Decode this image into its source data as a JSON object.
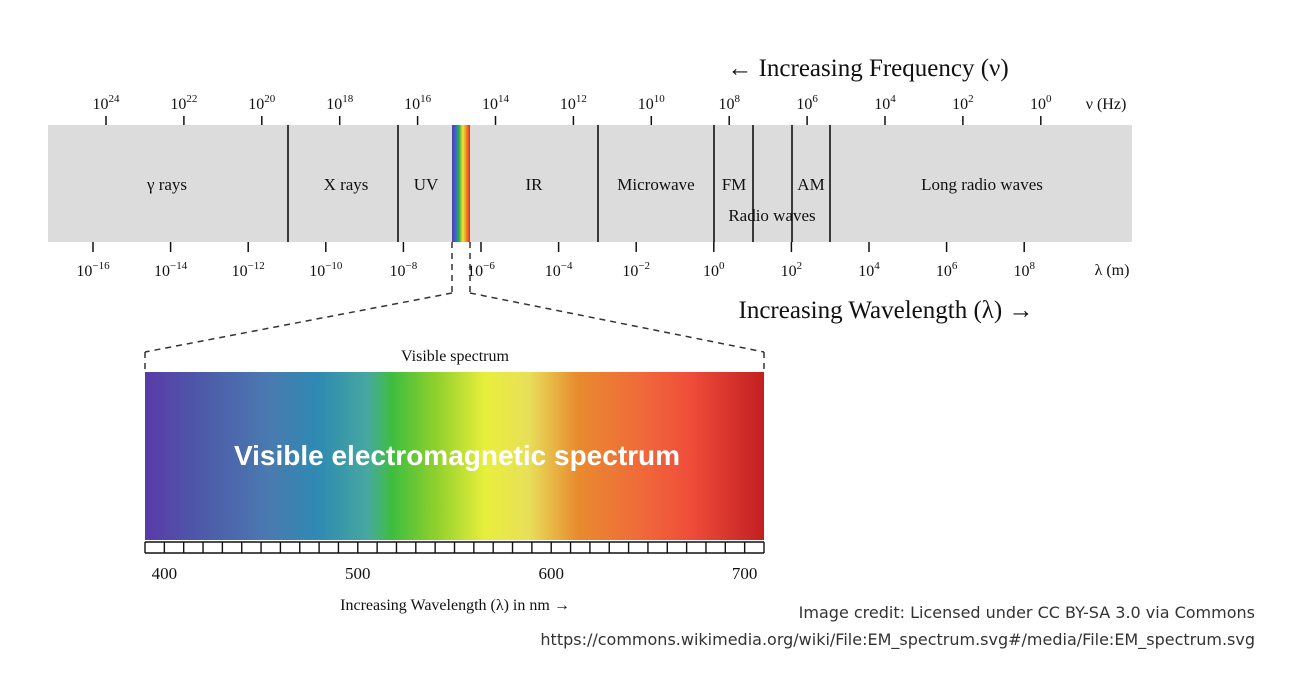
{
  "frequency_header": "← Increasing Frequency (ν)",
  "frequency_unit": "ν (Hz)",
  "frequency_ticks": [
    {
      "base": "10",
      "exp": "24"
    },
    {
      "base": "10",
      "exp": "22"
    },
    {
      "base": "10",
      "exp": "20"
    },
    {
      "base": "10",
      "exp": "18"
    },
    {
      "base": "10",
      "exp": "16"
    },
    {
      "base": "10",
      "exp": "14"
    },
    {
      "base": "10",
      "exp": "12"
    },
    {
      "base": "10",
      "exp": "10"
    },
    {
      "base": "10",
      "exp": "8"
    },
    {
      "base": "10",
      "exp": "6"
    },
    {
      "base": "10",
      "exp": "4"
    },
    {
      "base": "10",
      "exp": "2"
    },
    {
      "base": "10",
      "exp": "0"
    }
  ],
  "wavelength_unit": "λ (m)",
  "wavelength_ticks": [
    {
      "base": "10",
      "exp": "−16"
    },
    {
      "base": "10",
      "exp": "−14"
    },
    {
      "base": "10",
      "exp": "−12"
    },
    {
      "base": "10",
      "exp": "−10"
    },
    {
      "base": "10",
      "exp": "−8"
    },
    {
      "base": "10",
      "exp": "−6"
    },
    {
      "base": "10",
      "exp": "−4"
    },
    {
      "base": "10",
      "exp": "−2"
    },
    {
      "base": "10",
      "exp": "0"
    },
    {
      "base": "10",
      "exp": "2"
    },
    {
      "base": "10",
      "exp": "4"
    },
    {
      "base": "10",
      "exp": "6"
    },
    {
      "base": "10",
      "exp": "8"
    }
  ],
  "wavelength_footer": "Increasing Wavelength (λ) →",
  "regions": {
    "gamma": "γ rays",
    "xray": "X rays",
    "uv": "UV",
    "ir": "IR",
    "microwave": "Microwave",
    "fm": "FM",
    "am": "AM",
    "radio": "Radio waves",
    "long_radio": "Long radio waves"
  },
  "visible": {
    "title": "Visible spectrum",
    "overlay": "Visible electromagnetic spectrum",
    "ticks": [
      "400",
      "500",
      "600",
      "700"
    ],
    "axis_label": "Increasing Wavelength (λ) in nm →"
  },
  "colors": {
    "band": "#dcdcdc",
    "overlay_text": "#ffffff"
  },
  "credit": {
    "line1": "Image credit: Licensed under CC BY-SA 3.0 via Commons",
    "line2": "https://commons.wikimedia.org/wiki/File:EM_spectrum.svg#/media/File:EM_spectrum.svg"
  }
}
